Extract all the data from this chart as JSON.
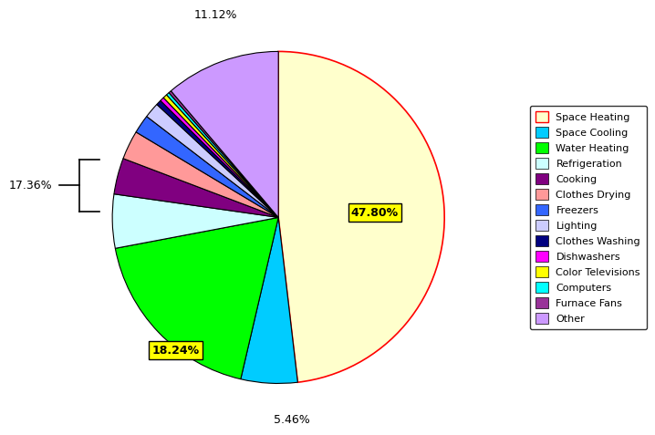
{
  "labels": [
    "Space Heating",
    "Space Cooling",
    "Water Heating",
    "Refrigeration",
    "Cooking",
    "Clothes Drying",
    "Freezers",
    "Lighting",
    "Clothes Washing",
    "Dishwashers",
    "Color Televisions",
    "Computers",
    "Furnace Fans",
    "Other"
  ],
  "values": [
    47.8,
    5.46,
    18.24,
    5.2,
    3.5,
    2.8,
    1.8,
    1.5,
    0.5,
    0.4,
    0.4,
    0.3,
    0.26,
    11.12
  ],
  "colors": [
    "#FFFFCC",
    "#00CCFF",
    "#00FF00",
    "#CCFFFF",
    "#800080",
    "#FF9999",
    "#3366FF",
    "#CCCCFF",
    "#000080",
    "#FF00FF",
    "#FFFF00",
    "#00FFFF",
    "#993399",
    "#CC99FF"
  ],
  "startangle": 90,
  "background_color": "#FFFFFF",
  "annotation_box_color": "#FFFF00",
  "bracket_label": "17.36%",
  "label_space_heating": "47.80%",
  "label_water_heating": "18.24%",
  "label_space_cooling": "5.46%",
  "label_other": "11.12%"
}
